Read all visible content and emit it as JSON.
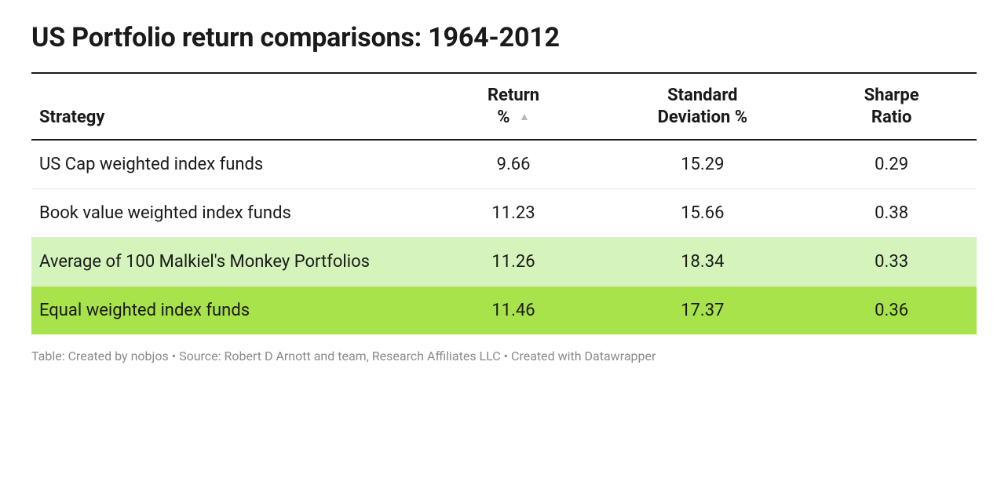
{
  "title": "US Portfolio return comparisons: 1964-2012",
  "table": {
    "type": "table",
    "columns": [
      {
        "key": "strategy",
        "label": "Strategy",
        "align": "left",
        "width_pct": 42
      },
      {
        "key": "return",
        "label": "Return\n%",
        "align": "center",
        "width_pct": 18,
        "sorted": "asc"
      },
      {
        "key": "stddev",
        "label": "Standard\nDeviation %",
        "align": "center",
        "width_pct": 22
      },
      {
        "key": "sharpe",
        "label": "Sharpe\nRatio",
        "align": "center",
        "width_pct": 18
      }
    ],
    "rows": [
      {
        "strategy": "US Cap weighted index funds",
        "return": "9.66",
        "stddev": "15.29",
        "sharpe": "0.29",
        "bg": "#ffffff"
      },
      {
        "strategy": "Book value weighted index funds",
        "return": "11.23",
        "stddev": "15.66",
        "sharpe": "0.38",
        "bg": "#ffffff"
      },
      {
        "strategy": "Average of 100 Malkiel's Monkey Portfolios",
        "return": "11.26",
        "stddev": "18.34",
        "sharpe": "0.33",
        "bg": "#d4f4bb"
      },
      {
        "strategy": "Equal weighted index funds",
        "return": "11.46",
        "stddev": "17.37",
        "sharpe": "0.36",
        "bg": "#a9e34b"
      }
    ],
    "header_border_color": "#1a1a1a",
    "row_border_color": "#e6e6e6",
    "text_color": "#1a1a1a",
    "font_size_body": 22,
    "font_size_title": 34,
    "sort_icon_color": "#b8b8b8"
  },
  "footer": "Table: Created by nobjos • Source: Robert D Arnott and team, Research Affiliates LLC • Created with Datawrapper",
  "footer_color": "#8a8a8a"
}
